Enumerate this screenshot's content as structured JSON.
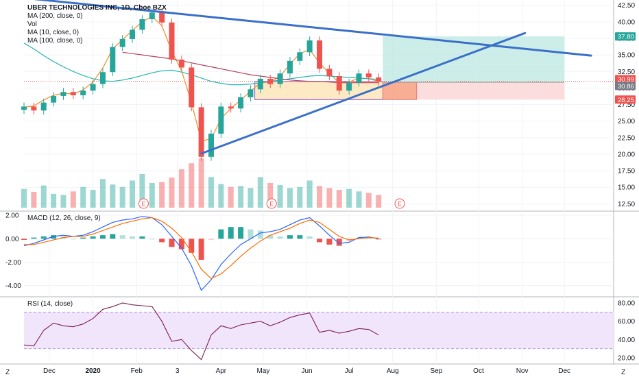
{
  "header": {
    "symbol_title": "UBER TECHNOLOGIES INC, 1D, Cboe BZX",
    "indicators": [
      "MA (200, close, 0)",
      "Vol",
      "MA (10, close, 0)",
      "MA (100, close, 0)"
    ]
  },
  "panes": {
    "macd_title": "MACD (12, 26, close, 9)",
    "rsi_title": "RSI (14, close)"
  },
  "price_tags": {
    "target": "37.80",
    "last": "30.99",
    "entry": "30.86",
    "stop": "28.25"
  },
  "earnings_marker": "E",
  "footer": {
    "left_icon": "Z",
    "right_icon": "Z"
  },
  "colors": {
    "up": "#26a69a",
    "down": "#ef5350",
    "trendline": "#3a6fc9",
    "ma10": "#f68a24",
    "ma100": "#26b5b1",
    "ma200": "#b2435a",
    "macd": "#2962ff",
    "signal": "#ff6d00",
    "rsi": "#7b1f4a",
    "rsi_band": "#f1e5fb",
    "target_zone": "#bfe8e2",
    "stop_zone": "#fcd7d7",
    "last_price": "#ef5350",
    "target_tag": "#26a69a",
    "stop_tag": "#ef5350"
  },
  "chart_data": [
    {
      "type": "candlestick",
      "title": "UBER TECHNOLOGIES INC, 1D, Cboe BZX",
      "x_tick_labels": [
        "Dec",
        "2020",
        "Feb",
        "3",
        "Apr",
        "May",
        "Jun",
        "Jul",
        "Aug",
        "Sep",
        "Oct",
        "Nov",
        "Dec"
      ],
      "x_range": [
        "2019-11-13",
        "2021-01-05"
      ],
      "y_tick_labels": [
        "12.50",
        "15.00",
        "17.50",
        "20.00",
        "22.50",
        "25.00",
        "27.50",
        "30.00",
        "32.50",
        "35.00",
        "37.50",
        "40.00",
        "42.50"
      ],
      "ylim": [
        11.5,
        43.3
      ],
      "grid": true,
      "close_series": [
        {
          "date": "2019-11-13",
          "close": 27.2
        },
        {
          "date": "2019-11-20",
          "close": 26.6
        },
        {
          "date": "2019-11-27",
          "close": 27.8
        },
        {
          "date": "2019-12-04",
          "close": 28.8
        },
        {
          "date": "2019-12-11",
          "close": 29.4
        },
        {
          "date": "2019-12-18",
          "close": 28.9
        },
        {
          "date": "2019-12-25",
          "close": 29.6
        },
        {
          "date": "2020-01-01",
          "close": 30.6
        },
        {
          "date": "2020-01-08",
          "close": 32.4
        },
        {
          "date": "2020-01-15",
          "close": 36.2
        },
        {
          "date": "2020-01-22",
          "close": 37.4
        },
        {
          "date": "2020-01-29",
          "close": 38.8
        },
        {
          "date": "2020-02-05",
          "close": 40.4
        },
        {
          "date": "2020-02-12",
          "close": 41.4
        },
        {
          "date": "2020-02-19",
          "close": 39.9
        },
        {
          "date": "2020-02-26",
          "close": 34.3
        },
        {
          "date": "2020-03-04",
          "close": 33.1
        },
        {
          "date": "2020-03-11",
          "close": 27.1
        },
        {
          "date": "2020-03-18",
          "close": 19.6
        },
        {
          "date": "2020-03-25",
          "close": 23.1
        },
        {
          "date": "2020-04-01",
          "close": 27.2
        },
        {
          "date": "2020-04-08",
          "close": 26.9
        },
        {
          "date": "2020-04-15",
          "close": 28.6
        },
        {
          "date": "2020-04-22",
          "close": 29.8
        },
        {
          "date": "2020-04-29",
          "close": 31.4
        },
        {
          "date": "2020-05-06",
          "close": 30.6
        },
        {
          "date": "2020-05-13",
          "close": 32.2
        },
        {
          "date": "2020-05-20",
          "close": 34.1
        },
        {
          "date": "2020-05-27",
          "close": 35.4
        },
        {
          "date": "2020-06-03",
          "close": 37.2
        },
        {
          "date": "2020-06-10",
          "close": 32.9
        },
        {
          "date": "2020-06-17",
          "close": 31.8
        },
        {
          "date": "2020-06-24",
          "close": 29.6
        },
        {
          "date": "2020-07-01",
          "close": 30.8
        },
        {
          "date": "2020-07-08",
          "close": 32.2
        },
        {
          "date": "2020-07-15",
          "close": 31.6
        },
        {
          "date": "2020-07-22",
          "close": 30.99
        }
      ],
      "moving_averages": [
        {
          "name": "MA (10, close, 0)",
          "values": [
            27.1,
            27.3,
            28.2,
            28.9,
            29.2,
            29.1,
            29.7,
            30.9,
            33.0,
            35.9,
            37.3,
            38.7,
            40.0,
            40.8,
            39.4,
            35.6,
            32.6,
            27.8,
            22.0,
            22.3,
            25.4,
            26.9,
            28.2,
            29.5,
            30.8,
            30.9,
            31.8,
            33.6,
            35.2,
            35.8,
            33.8,
            32.2,
            30.8,
            30.9,
            31.5,
            31.4,
            31.0
          ]
        },
        {
          "name": "MA (100, close, 0)",
          "values": [
            36.8,
            35.9,
            34.9,
            34.0,
            33.2,
            32.5,
            31.9,
            31.4,
            31.1,
            31.0,
            31.2,
            31.5,
            31.9,
            32.3,
            32.6,
            32.7,
            32.4,
            32.0,
            31.5,
            31.0,
            30.7,
            30.5,
            30.5,
            30.6,
            30.8,
            31.0,
            31.2,
            31.4,
            31.6,
            31.8,
            31.9,
            31.8,
            31.7,
            31.6,
            31.5,
            31.4,
            31.3
          ]
        },
        {
          "name": "MA (200, close, 0)",
          "values": [
            null,
            null,
            null,
            null,
            null,
            null,
            null,
            null,
            null,
            null,
            35.4,
            35.2,
            35.0,
            34.8,
            34.6,
            34.4,
            34.1,
            33.8,
            33.5,
            33.2,
            32.9,
            32.6,
            32.3,
            32.0,
            31.8,
            31.6,
            31.4,
            31.2,
            31.1,
            31.0,
            31.0,
            30.9,
            30.8,
            30.8,
            30.8,
            30.8,
            30.8
          ]
        }
      ],
      "trendlines": [
        {
          "from": {
            "date": "2019-11-13",
            "price": 43.6
          },
          "to": {
            "date": "2020-12-20",
            "price": 34.9
          }
        },
        {
          "from": {
            "date": "2020-03-18",
            "price": 20.1
          },
          "to": {
            "date": "2020-11-03",
            "price": 38.3
          }
        }
      ],
      "consolidation_box": {
        "from": "2020-04-25",
        "to": "2020-07-25",
        "low": 28.25,
        "high": 30.99
      },
      "position": {
        "from": "2020-07-25",
        "to": "2020-12-01",
        "stop_box_end": "2020-08-18",
        "target": 37.8,
        "entry": 30.86,
        "stop": 28.25
      },
      "last_price": 30.99,
      "earnings_dates": [
        "2020-02-06",
        "2020-05-07",
        "2020-08-06"
      ]
    },
    {
      "type": "bar",
      "title": "Vol",
      "note": "relative daily volume, unitless",
      "values": [
        0.38,
        0.32,
        0.45,
        0.28,
        0.26,
        0.33,
        0.42,
        0.36,
        0.58,
        0.47,
        0.42,
        0.55,
        0.68,
        0.5,
        0.52,
        0.61,
        0.78,
        0.9,
        1.0,
        0.62,
        0.48,
        0.42,
        0.44,
        0.4,
        0.62,
        0.5,
        0.46,
        0.4,
        0.42,
        0.55,
        0.44,
        0.4,
        0.36,
        0.38,
        0.33,
        0.3,
        0.26
      ]
    },
    {
      "type": "line",
      "title": "MACD (12, 26, close, 9)",
      "y_tick_labels": [
        "2.00",
        "0.00",
        "-2.00",
        "-4.00"
      ],
      "ylim": [
        -4.9,
        2.3
      ],
      "series": [
        {
          "name": "MACD",
          "values": [
            -0.6,
            -0.4,
            -0.1,
            0.2,
            0.3,
            0.2,
            0.3,
            0.6,
            1.0,
            1.4,
            1.6,
            1.7,
            1.9,
            1.8,
            1.2,
            0.2,
            -0.8,
            -2.3,
            -4.4,
            -3.5,
            -2.2,
            -1.3,
            -0.5,
            0.0,
            0.5,
            0.6,
            0.8,
            1.2,
            1.6,
            1.8,
            1.1,
            0.3,
            -0.4,
            -0.3,
            0.1,
            0.15,
            0.0
          ]
        },
        {
          "name": "Signal",
          "values": [
            -0.5,
            -0.5,
            -0.3,
            -0.1,
            0.1,
            0.2,
            0.2,
            0.4,
            0.7,
            1.0,
            1.3,
            1.5,
            1.7,
            1.8,
            1.5,
            0.9,
            0.1,
            -1.1,
            -2.6,
            -3.4,
            -3.0,
            -2.3,
            -1.5,
            -0.8,
            -0.2,
            0.3,
            0.6,
            0.9,
            1.3,
            1.6,
            1.4,
            0.8,
            0.2,
            -0.1,
            0.0,
            0.1,
            0.05
          ]
        }
      ]
    },
    {
      "type": "line",
      "title": "RSI (14, close)",
      "y_tick_labels": [
        "80.00",
        "60.00",
        "40.00",
        "20.00"
      ],
      "ylim": [
        14,
        86
      ],
      "bands": [
        30,
        70
      ],
      "series": [
        {
          "name": "RSI",
          "values": [
            34,
            33,
            50,
            58,
            55,
            54,
            57,
            63,
            73,
            76,
            80,
            78,
            77,
            76,
            60,
            38,
            40,
            28,
            18,
            45,
            55,
            52,
            56,
            58,
            60,
            55,
            59,
            64,
            67,
            69,
            48,
            50,
            47,
            49,
            52,
            51,
            45
          ]
        }
      ]
    }
  ]
}
